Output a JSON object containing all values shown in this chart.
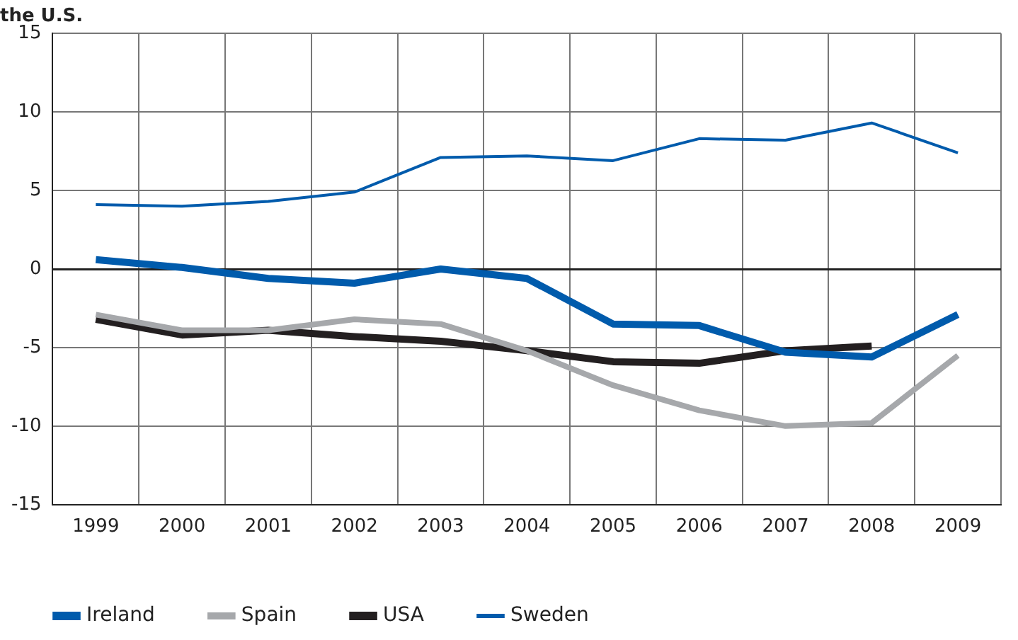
{
  "chart_data": {
    "type": "line",
    "title": "the U.S.",
    "categories": [
      "1999",
      "2000",
      "2001",
      "2002",
      "2003",
      "2004",
      "2005",
      "2006",
      "2007",
      "2008",
      "2009"
    ],
    "series": [
      {
        "name": "Ireland",
        "color": "#005bac",
        "values": [
          0.6,
          0.1,
          -0.6,
          -0.9,
          0.0,
          -0.6,
          -3.5,
          -3.6,
          -5.3,
          -5.6,
          -2.9
        ]
      },
      {
        "name": "Spain",
        "color": "#a6a8ab",
        "values": [
          -2.9,
          -3.9,
          -3.9,
          -3.2,
          -3.5,
          -5.2,
          -7.4,
          -9.0,
          -10.0,
          -9.8,
          -5.5
        ]
      },
      {
        "name": "USA",
        "color": "#231f20",
        "values": [
          -3.2,
          -4.2,
          -3.9,
          -4.3,
          -4.6,
          -5.2,
          -5.9,
          -6.0,
          -5.2,
          -4.9,
          null
        ]
      },
      {
        "name": "Sweden",
        "color": "#005bac",
        "values": [
          4.1,
          4.0,
          4.3,
          4.9,
          7.1,
          7.2,
          6.9,
          8.3,
          8.2,
          9.3,
          7.4
        ]
      }
    ],
    "ylim": [
      -15,
      15
    ],
    "yticks": [
      -15,
      -10,
      -5,
      0,
      5,
      10,
      15
    ],
    "grid": true,
    "legend": "bottom",
    "marker": "none",
    "line_style": "solid"
  }
}
